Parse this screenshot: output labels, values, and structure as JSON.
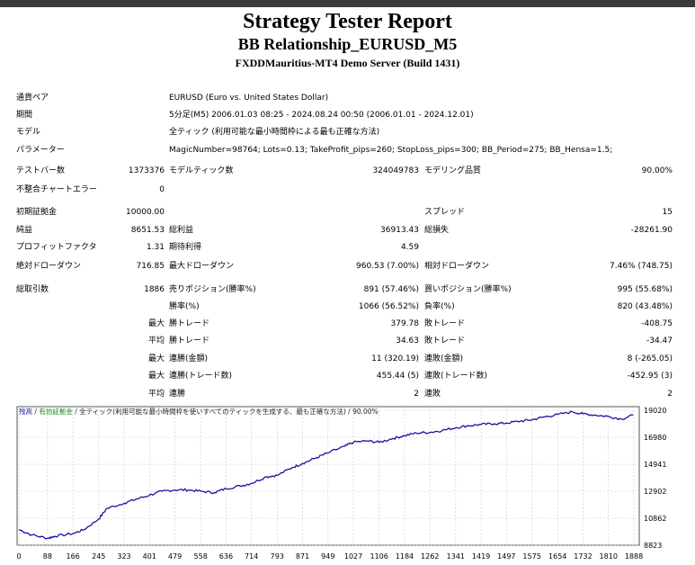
{
  "header": {
    "title": "Strategy Tester Report",
    "subtitle": "BB Relationship_EURUSD_M5",
    "server": "FXDDMauritius-MT4 Demo Server (Build 1431)"
  },
  "info": [
    {
      "label": "通貨ペア",
      "value": "EURUSD (Euro vs. United States Dollar)"
    },
    {
      "label": "期間",
      "value": "5分足(M5) 2006.01.03 08:25 - 2024.08.24 00:50 (2006.01.01 - 2024.12.01)"
    },
    {
      "label": "モデル",
      "value": "全ティック (利用可能な最小時間枠による最も正確な方法)"
    },
    {
      "label": "パラメーター",
      "value": "MagicNumber=98764; Lots=0.13; TakeProfit_pips=260; StopLoss_pips=300; BB_Period=275; BB_Hensa=1.5;"
    }
  ],
  "stats": {
    "bars_label": "テストバー数",
    "bars": "1373376",
    "ticks_label": "モデルティック数",
    "ticks": "324049783",
    "quality_label": "モデリング品質",
    "quality": "90.00%",
    "mismatch_label": "不整合チャートエラー",
    "mismatch": "0",
    "deposit_label": "初期証拠金",
    "deposit": "10000.00",
    "spread_label": "スプレッド",
    "spread": "15",
    "netprofit_label": "純益",
    "netprofit": "8651.53",
    "grossprofit_label": "総利益",
    "grossprofit": "36913.43",
    "grossloss_label": "総損失",
    "grossloss": "-28261.90",
    "pf_label": "プロフィットファクタ",
    "pf": "1.31",
    "expected_label": "期待利得",
    "expected": "4.59",
    "absdd_label": "絶対ドローダウン",
    "absdd": "716.85",
    "maxdd_label": "最大ドローダウン",
    "maxdd": "960.53 (7.00%)",
    "reldd_label": "相対ドローダウン",
    "reldd": "7.46% (748.75)",
    "trades_label": "総取引数",
    "trades": "1886",
    "short_label": "売りポジション(勝率%)",
    "short": "891 (57.46%)",
    "long_label": "買いポジション(勝率%)",
    "long": "995 (55.68%)",
    "winpct_label": "勝率(%)",
    "winpct": "1066 (56.52%)",
    "losspct_label": "負率(%)",
    "losspct": "820 (43.48%)",
    "max1": "最大",
    "largestwin_label": "勝トレード",
    "largestwin": "379.78",
    "largestloss_label": "敗トレード",
    "largestloss": "-408.75",
    "avg1": "平均",
    "avgwin_label": "勝トレード",
    "avgwin": "34.63",
    "avgloss_label": "敗トレード",
    "avgloss": "-34.47",
    "max2": "最大",
    "conswin_label": "連勝(金額)",
    "conswin": "11 (320.19)",
    "consloss_label": "連敗(金額)",
    "consloss": "8 (-265.05)",
    "max3": "最大",
    "consprofit_label": "連勝(トレード数)",
    "consprofit": "455.44 (5)",
    "conslossamt_label": "連敗(トレード数)",
    "conslossamt": "-452.95 (3)",
    "avg2": "平均",
    "avgconswin_label": "連勝",
    "avgconswin": "2",
    "avgconsloss_label": "連敗",
    "avgconsloss": "2"
  },
  "chart_legend": {
    "balance": "残高",
    "equity": "有効証拠金",
    "model": "全ティック(利用可能な最小時間枠を使いすべてのティックを生成する、最も正確な方法)",
    "quality": "90.00%",
    "sep": "/"
  },
  "chart_data": {
    "type": "line",
    "x_ticks": [
      "0",
      "88",
      "166",
      "245",
      "323",
      "401",
      "479",
      "558",
      "636",
      "714",
      "793",
      "871",
      "949",
      "1027",
      "1106",
      "1184",
      "1262",
      "1341",
      "1419",
      "1497",
      "1575",
      "1654",
      "1732",
      "1810",
      "1888"
    ],
    "y_ticks": [
      "19020",
      "16980",
      "14941",
      "12902",
      "10862",
      "8823"
    ],
    "ylim": [
      8823,
      19020
    ],
    "xlim": [
      0,
      1886
    ],
    "series": [
      {
        "x": [
          0,
          40,
          88,
          110,
          166,
          200,
          245,
          270,
          323,
          360,
          401,
          440,
          479,
          520,
          558,
          600,
          636,
          680,
          714,
          760,
          793,
          840,
          871,
          910,
          949,
          1000,
          1027,
          1070,
          1106,
          1150,
          1184,
          1220,
          1262,
          1300,
          1341,
          1380,
          1419,
          1460,
          1497,
          1540,
          1575,
          1610,
          1654,
          1700,
          1732,
          1770,
          1810,
          1850,
          1886
        ],
        "y": [
          10000,
          9600,
          9350,
          9500,
          9700,
          10000,
          10800,
          11600,
          12000,
          12300,
          12600,
          12900,
          13000,
          13000,
          12900,
          12800,
          13100,
          13300,
          13500,
          14000,
          14100,
          14700,
          15000,
          15400,
          15800,
          16300,
          16600,
          16700,
          16600,
          16900,
          17100,
          17300,
          17350,
          17500,
          17700,
          17850,
          17950,
          18000,
          18050,
          18200,
          18300,
          18500,
          18700,
          18900,
          18750,
          18650,
          18550,
          18350,
          18651
        ]
      }
    ]
  }
}
